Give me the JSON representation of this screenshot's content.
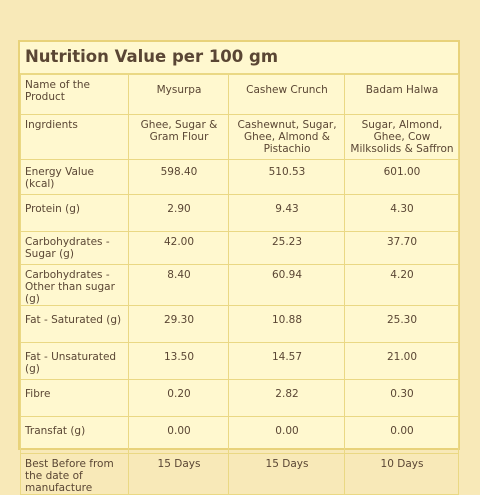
{
  "title": "Nutrition Value per 100 gm",
  "columns": [
    "Name of the Product",
    "Mysurpa",
    "Cashew Crunch",
    "Badam Halwa"
  ],
  "rows": [
    {
      "label": "Ingrdients",
      "values": [
        "Ghee, Sugar & Gram Flour",
        "Cashewnut, Sugar, Ghee, Almond & Pistachio",
        "Sugar, Almond, Ghee, Cow Milksolids & Saffron"
      ]
    },
    {
      "label": "Energy Value (kcal)",
      "values": [
        "598.40",
        "510.53",
        "601.00"
      ]
    },
    {
      "label": "Protein (g)",
      "values": [
        "2.90",
        "9.43",
        "4.30"
      ]
    },
    {
      "label": "Carbohydrates - Sugar (g)",
      "values": [
        "42.00",
        "25.23",
        "37.70"
      ]
    },
    {
      "label": "Carbohydrates - Other than sugar (g)",
      "values": [
        "8.40",
        "60.94",
        "4.20"
      ]
    },
    {
      "label": "Fat - Saturated (g)",
      "values": [
        "29.30",
        "10.88",
        "25.30"
      ]
    },
    {
      "label": "Fat - Unsaturated (g)",
      "values": [
        "13.50",
        "14.57",
        "21.00"
      ]
    },
    {
      "label": "Fibre",
      "values": [
        "0.20",
        "2.82",
        "0.30"
      ]
    },
    {
      "label": "Transfat (g)",
      "values": [
        "0.00",
        "0.00",
        "0.00"
      ]
    },
    {
      "label": "Best Before from the date of manufacture",
      "values": [
        "15 Days",
        "15 Days",
        "10 Days"
      ]
    }
  ],
  "colors": {
    "background": "#f8e9b8",
    "card": "#fff8cf",
    "border": "#e8d27a",
    "text": "#5a4634"
  }
}
